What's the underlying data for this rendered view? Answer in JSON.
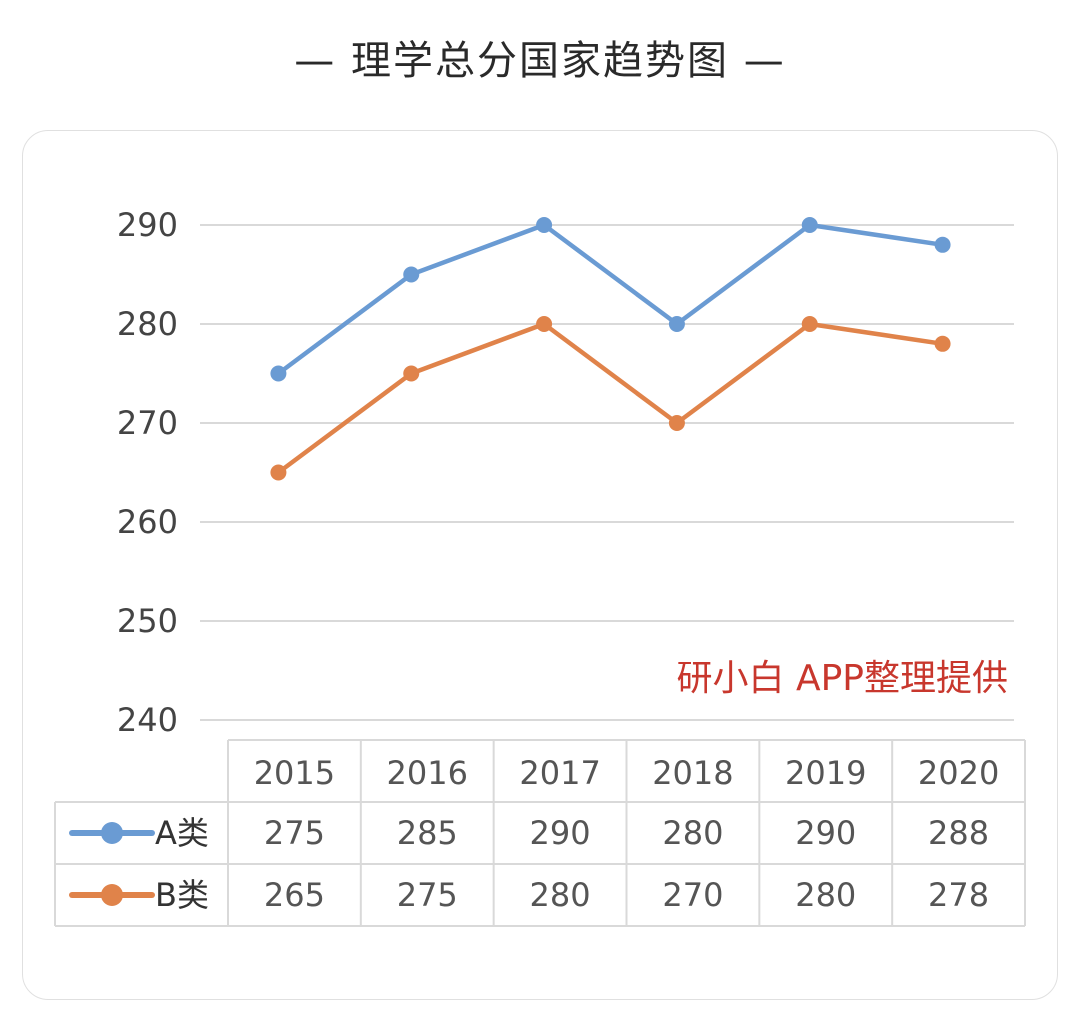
{
  "title": "— 理学总分国家趋势图 —",
  "watermark": "研小白 APP整理提供",
  "colors": {
    "a": "#6a9bd3",
    "b": "#e0834a",
    "grid": "#d9d9d9",
    "watermark": "#c8372d"
  },
  "chart_data": {
    "type": "line",
    "title": "— 理学总分国家趋势图 —",
    "xlabel": "",
    "ylabel": "",
    "categories": [
      "2015",
      "2016",
      "2017",
      "2018",
      "2019",
      "2020"
    ],
    "ylim": [
      240,
      290
    ],
    "yticks": [
      240,
      250,
      260,
      270,
      280,
      290
    ],
    "grid": true,
    "legend": "data-table",
    "series": [
      {
        "name": "A类",
        "color": "#6a9bd3",
        "values": [
          275,
          285,
          290,
          280,
          290,
          288
        ]
      },
      {
        "name": "B类",
        "color": "#e0834a",
        "values": [
          265,
          275,
          280,
          270,
          280,
          278
        ]
      }
    ]
  }
}
